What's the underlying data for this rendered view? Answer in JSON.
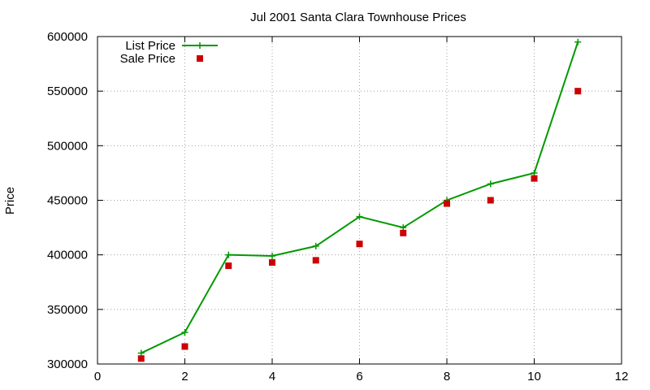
{
  "chart_data": {
    "type": "line",
    "title": "Jul 2001 Santa Clara Townhouse Prices",
    "xlabel": "",
    "ylabel": "Price",
    "xlim": [
      0,
      12
    ],
    "ylim": [
      300000,
      600000
    ],
    "xticks": [
      "0",
      "2",
      "4",
      "6",
      "8",
      "10",
      "12"
    ],
    "yticks": [
      "300000",
      "350000",
      "400000",
      "450000",
      "500000",
      "550000",
      "600000"
    ],
    "grid": true,
    "legend_position": "top-left",
    "series": [
      {
        "name": "List Price",
        "style": "line-with-plus-markers",
        "color": "#009900",
        "x": [
          1,
          2,
          3,
          4,
          5,
          6,
          7,
          8,
          9,
          10,
          11
        ],
        "y": [
          310000,
          329000,
          400000,
          399000,
          408000,
          435000,
          425000,
          450000,
          465000,
          475000,
          595000
        ]
      },
      {
        "name": "Sale Price",
        "style": "square-markers",
        "color": "#cc0000",
        "x": [
          1,
          2,
          3,
          4,
          5,
          6,
          7,
          8,
          9,
          10,
          11
        ],
        "y": [
          305000,
          316000,
          390000,
          393000,
          395000,
          410000,
          420000,
          447000,
          450000,
          470000,
          550000
        ]
      }
    ]
  }
}
